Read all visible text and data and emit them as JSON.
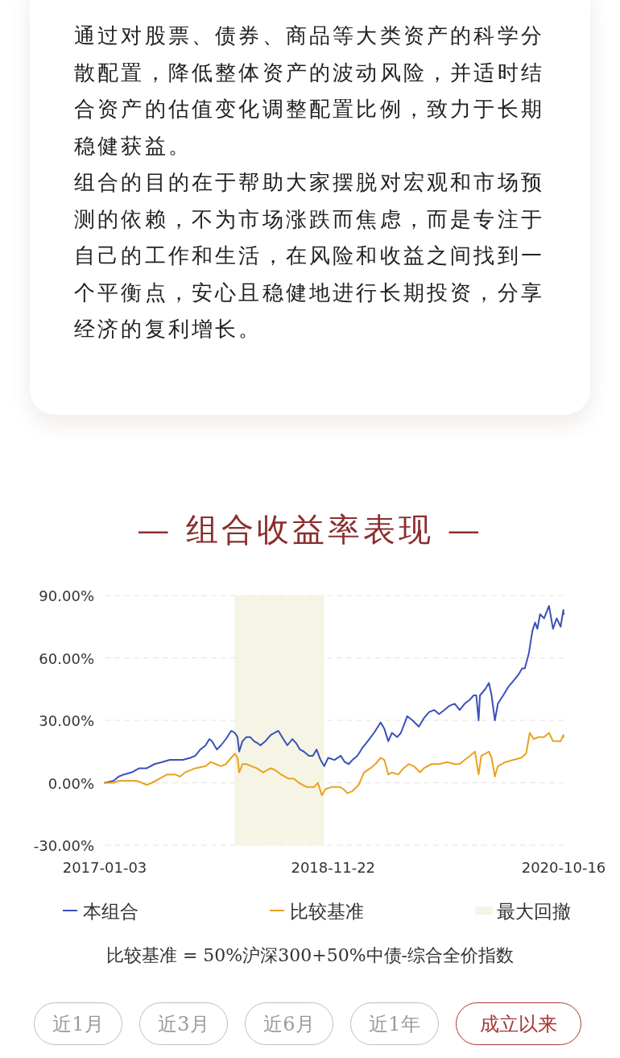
{
  "chart_data": {
    "type": "line",
    "title": "— 组合收益率表现 —",
    "annotations": [
      "通过对股票、债券、商品等大类资产的科学分散配置，降低整体资产的波动风险，并适时结合资产的估值变化调整配置比例，致力于长期稳健获益。",
      "组合的目的在于帮助大家摆脱对宏观和市场预测的依赖，不为市场涨跌而焦虑，而是专注于自己的工作和生活，在风险和收益之间找到一个平衡点，安心且稳健地进行长期投资，分享经济的复利增长。",
      "比较基准 = 50%沪深300+50%中债-综合全价指数",
      "近1月",
      "近3月",
      "近6月",
      "近1年",
      "成立以来"
    ],
    "xlim": [
      "2017-01-03",
      "2020-10-16"
    ],
    "xticks": [
      "2017-01-03",
      "2018-11-22",
      "2020-10-16"
    ],
    "ylim": [
      -30,
      90
    ],
    "yticks": [
      {
        "value": -30,
        "label": "-30.00%"
      },
      {
        "value": 0,
        "label": "0.00%"
      },
      {
        "value": 30,
        "label": "30.00%"
      },
      {
        "value": 60,
        "label": "60.00%"
      },
      {
        "value": 90,
        "label": "90.00%"
      }
    ],
    "grid": "y",
    "legend": "bottom",
    "bands": [
      {
        "axis": "x",
        "from": "2018-01-29",
        "to": "2018-10-26",
        "label": "最大回撤",
        "color": "#f6f4e4"
      }
    ],
    "series": [
      {
        "name": "本组合",
        "color": "#3a51b8",
        "x": [
          "2017-01-03",
          "2017-01-30",
          "2017-02-14",
          "2017-03-02",
          "2017-03-25",
          "2017-04-17",
          "2017-05-10",
          "2017-06-02",
          "2017-06-25",
          "2017-07-18",
          "2017-08-10",
          "2017-08-26",
          "2017-09-18",
          "2017-10-03",
          "2017-10-18",
          "2017-11-03",
          "2017-11-14",
          "2017-11-22",
          "2017-12-07",
          "2017-12-19",
          "2018-01-03",
          "2018-01-19",
          "2018-01-30",
          "2018-02-07",
          "2018-02-12",
          "2018-02-22",
          "2018-03-06",
          "2018-03-17",
          "2018-03-29",
          "2018-04-09",
          "2018-04-17",
          "2018-05-02",
          "2018-05-18",
          "2018-06-10",
          "2018-06-25",
          "2018-07-07",
          "2018-07-22",
          "2018-08-03",
          "2018-08-14",
          "2018-08-26",
          "2018-09-10",
          "2018-09-22",
          "2018-10-03",
          "2018-10-15",
          "2018-10-26",
          "2018-11-07",
          "2018-11-26",
          "2018-12-15",
          "2018-12-27",
          "2019-01-08",
          "2019-01-19",
          "2019-02-03",
          "2019-02-19",
          "2019-03-06",
          "2019-03-25",
          "2019-04-06",
          "2019-04-14",
          "2019-04-25",
          "2019-05-07",
          "2019-05-18",
          "2019-06-03",
          "2019-06-14",
          "2019-06-26",
          "2019-07-03",
          "2019-07-19",
          "2019-08-07",
          "2019-08-22",
          "2019-09-07",
          "2019-09-22",
          "2019-10-07",
          "2019-10-23",
          "2019-11-07",
          "2019-11-23",
          "2019-12-08",
          "2019-12-23",
          "2020-01-08",
          "2020-01-19",
          "2020-01-27",
          "2020-02-03",
          "2020-02-07",
          "2020-02-23",
          "2020-03-05",
          "2020-03-13",
          "2020-03-23",
          "2020-04-01",
          "2020-04-17",
          "2020-05-02",
          "2020-05-18",
          "2020-06-02",
          "2020-06-13",
          "2020-06-21",
          "2020-07-03",
          "2020-07-14",
          "2020-07-22",
          "2020-07-29",
          "2020-08-06",
          "2020-08-18",
          "2020-09-02",
          "2020-09-14",
          "2020-09-25",
          "2020-10-07",
          "2020-10-15",
          "2020-10-16"
        ],
        "values": [
          0,
          1,
          3,
          4,
          5,
          7,
          7,
          9,
          10,
          11,
          11,
          11,
          12,
          13,
          16,
          18,
          21,
          20,
          16,
          18,
          21,
          25,
          24,
          22,
          15,
          20,
          22,
          22,
          20,
          19,
          18,
          20,
          23,
          25,
          21,
          18,
          21,
          19,
          16,
          15,
          13,
          13,
          16,
          11,
          8,
          12,
          11,
          13,
          10,
          9,
          11,
          13,
          17,
          20,
          24,
          27,
          29,
          26,
          20,
          24,
          22,
          24,
          29,
          32,
          30,
          27,
          31,
          34,
          35,
          33,
          35,
          37,
          38,
          35,
          38,
          40,
          42,
          42,
          30,
          42,
          45,
          48,
          42,
          30,
          38,
          42,
          46,
          49,
          52,
          55,
          55,
          62,
          73,
          77,
          74,
          81,
          79,
          85,
          74,
          79,
          75,
          83,
          81
        ]
      },
      {
        "name": "比较基准",
        "color": "#e9a21e",
        "x": [
          "2017-01-03",
          "2017-01-30",
          "2017-02-14",
          "2017-03-09",
          "2017-04-09",
          "2017-04-25",
          "2017-05-10",
          "2017-05-25",
          "2017-06-17",
          "2017-07-10",
          "2017-08-03",
          "2017-08-18",
          "2017-09-02",
          "2017-10-03",
          "2017-11-03",
          "2017-11-18",
          "2017-12-04",
          "2017-12-19",
          "2018-01-03",
          "2018-01-19",
          "2018-01-30",
          "2018-02-07",
          "2018-02-12",
          "2018-02-22",
          "2018-03-06",
          "2018-03-21",
          "2018-04-06",
          "2018-04-25",
          "2018-05-18",
          "2018-06-02",
          "2018-06-18",
          "2018-07-11",
          "2018-07-26",
          "2018-08-11",
          "2018-09-03",
          "2018-09-26",
          "2018-10-07",
          "2018-10-19",
          "2018-10-30",
          "2018-11-18",
          "2018-12-12",
          "2018-12-23",
          "2019-01-04",
          "2019-01-19",
          "2019-02-07",
          "2019-02-23",
          "2019-03-14",
          "2019-03-29",
          "2019-04-14",
          "2019-04-25",
          "2019-05-07",
          "2019-05-18",
          "2019-06-06",
          "2019-06-22",
          "2019-07-07",
          "2019-07-23",
          "2019-08-11",
          "2019-08-22",
          "2019-09-14",
          "2019-10-07",
          "2019-10-31",
          "2019-11-23",
          "2019-12-08",
          "2019-12-23",
          "2020-01-08",
          "2020-01-23",
          "2020-02-03",
          "2020-02-11",
          "2020-02-23",
          "2020-03-05",
          "2020-03-13",
          "2020-03-23",
          "2020-04-01",
          "2020-04-24",
          "2020-05-18",
          "2020-06-10",
          "2020-06-25",
          "2020-07-06",
          "2020-07-18",
          "2020-08-02",
          "2020-08-18",
          "2020-09-02",
          "2020-09-14",
          "2020-09-25",
          "2020-10-07",
          "2020-10-15",
          "2020-10-16"
        ],
        "values": [
          0,
          0,
          1,
          1,
          1,
          0,
          -1,
          0,
          2,
          4,
          4,
          3,
          5,
          7,
          8,
          10,
          9,
          8,
          9,
          12,
          14,
          12,
          5,
          9,
          9,
          8,
          7,
          5,
          7,
          6,
          4,
          2,
          2,
          0,
          -2,
          -2,
          0,
          -6,
          -3,
          -2,
          -2,
          -3,
          -5,
          -4,
          -1,
          5,
          7,
          9,
          12,
          11,
          4,
          5,
          4,
          7,
          9,
          8,
          5,
          7,
          9,
          9,
          10,
          9,
          9,
          11,
          13,
          15,
          4,
          13,
          14,
          15,
          12,
          3,
          8,
          10,
          11,
          12,
          14,
          24,
          21,
          22,
          22,
          24,
          20,
          20,
          20,
          23,
          22
        ]
      }
    ]
  }
}
